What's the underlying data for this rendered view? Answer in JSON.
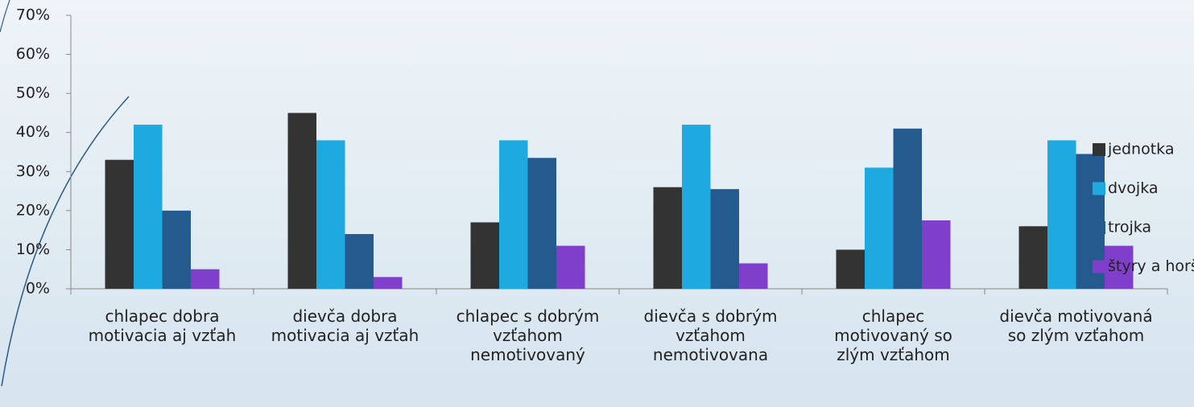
{
  "chart_data": {
    "type": "bar",
    "categories": [
      "chlapec dobra motivacia aj vzťah",
      "dievča dobra motivacia aj vzťah",
      "chlapec s dobrým vzťahom nemotivovaný",
      "dievča s dobrým vzťahom nemotivovana",
      "chlapec motivovaný so zlým vzťahom",
      "dievča motivovaná so zlým vzťahom"
    ],
    "series": [
      {
        "name": "jednotka",
        "color": "#333333",
        "values": [
          33,
          45,
          17,
          26,
          10,
          16
        ]
      },
      {
        "name": "dvojka",
        "color": "#1ea9e1",
        "values": [
          42,
          38,
          38,
          42,
          31,
          38
        ]
      },
      {
        "name": "trojka",
        "color": "#245a8d",
        "values": [
          20,
          14,
          33.5,
          25.5,
          41,
          34.5
        ]
      },
      {
        "name": "štyry a horšie",
        "color": "#7f3fcb",
        "values": [
          5,
          3,
          11,
          6.5,
          17.5,
          11
        ]
      }
    ],
    "ylim": [
      0,
      70
    ],
    "yticks": [
      {
        "value": 0,
        "label": "0%"
      },
      {
        "value": 10,
        "label": "10%"
      },
      {
        "value": 20,
        "label": "20%"
      },
      {
        "value": 30,
        "label": "30%"
      },
      {
        "value": 40,
        "label": "40%"
      },
      {
        "value": 50,
        "label": "50%"
      },
      {
        "value": 60,
        "label": "60%"
      },
      {
        "value": 70,
        "label": "70%"
      }
    ],
    "legend": "right"
  }
}
